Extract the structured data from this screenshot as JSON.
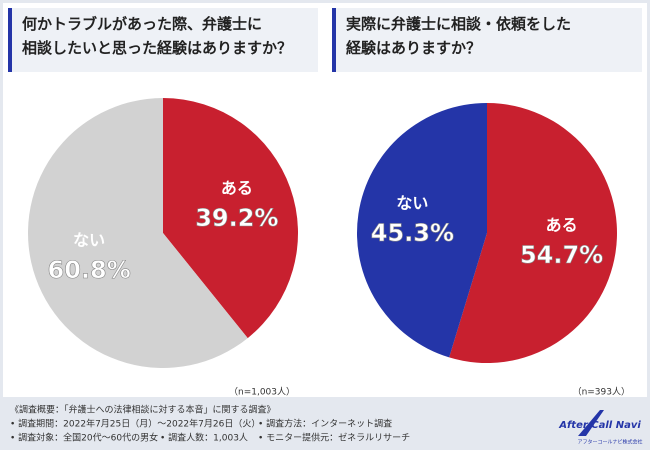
{
  "chart_data": [
    {
      "type": "pie",
      "title": "何かトラブルがあった際、弁護士に\n相談したいと思った経験はありますか？",
      "categories": [
        "ある",
        "ない"
      ],
      "values": [
        39.2,
        60.8
      ],
      "value_labels": [
        "39.2%",
        "60.8%"
      ],
      "colors": [
        "#c8202f",
        "#d2d2d2"
      ],
      "note": "（n=1,003人）"
    },
    {
      "type": "pie",
      "title": "実際に弁護士に相談・依頼をした\n経験はありますか？",
      "categories": [
        "ある",
        "ない"
      ],
      "values": [
        54.7,
        45.3
      ],
      "value_labels": [
        "54.7%",
        "45.3%"
      ],
      "colors": [
        "#c8202f",
        "#2435a8"
      ],
      "note": "（n=393人）"
    }
  ],
  "footer": {
    "heading": "《調査概要：「弁護士への法律相談に対する本音」に関する調査》",
    "items": [
      "• 調査期間：2022年7月25日（月）～2022年7月26日（火）",
      "• 調査方法：インターネット調査",
      "• 調査対象：全国20代～60代の男女",
      "• 調査人数：1,003人",
      "• モニター提供元：ゼネラルリサーチ"
    ]
  },
  "logo": {
    "name": "After Call Navi",
    "company": "アフターコールナビ株式会社"
  }
}
